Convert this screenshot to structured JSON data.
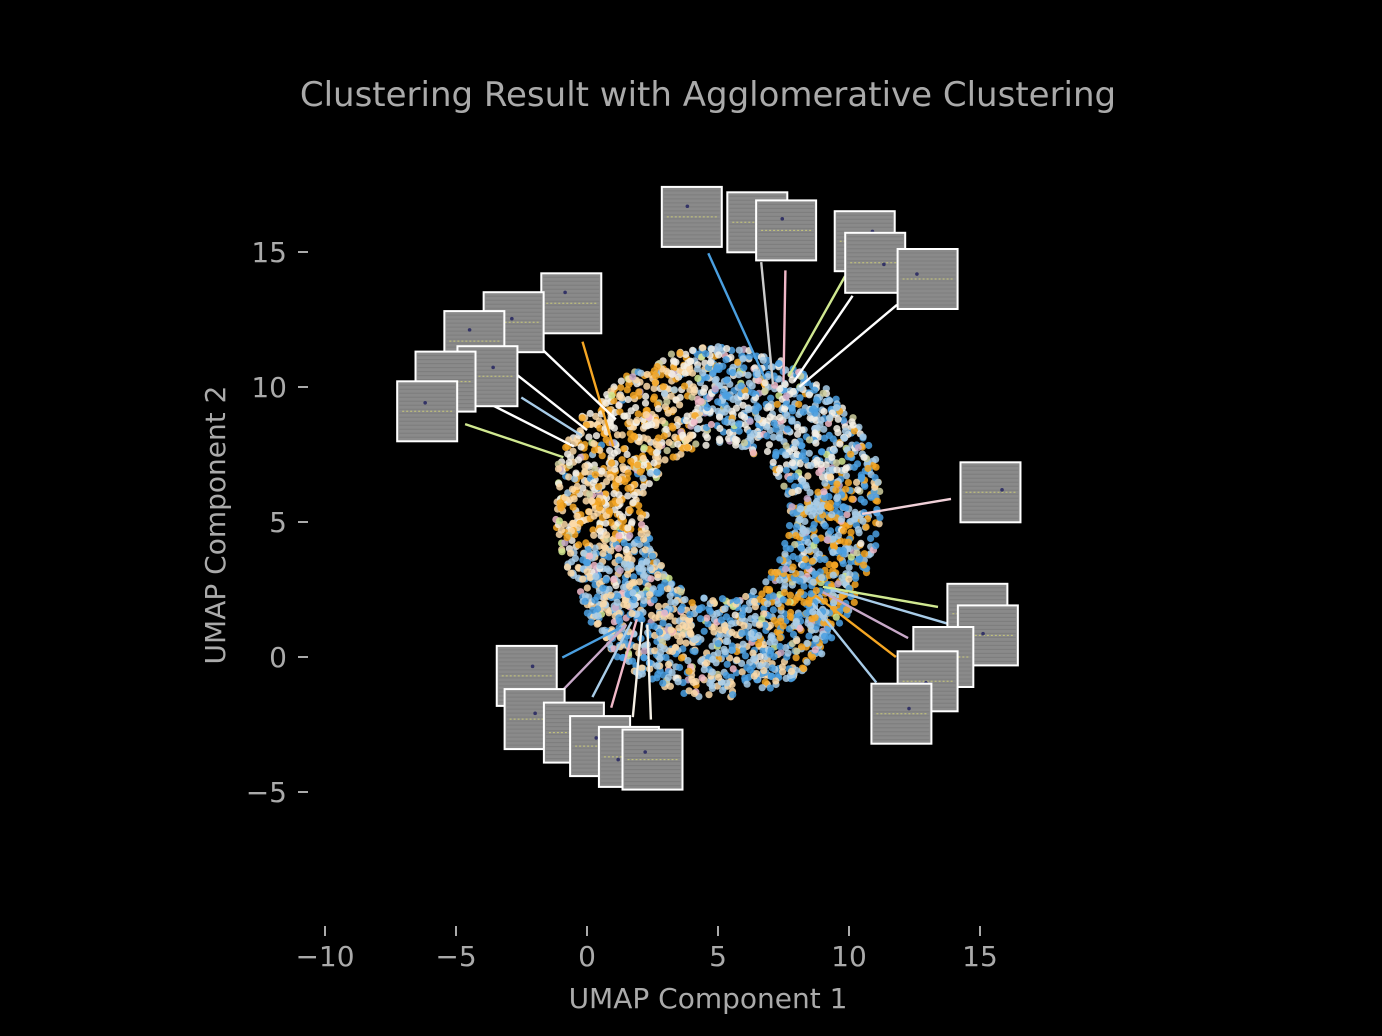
{
  "chart_data": {
    "type": "scatter",
    "title": "Clustering Result with Agglomerative Clustering",
    "xlabel": "UMAP Component 1",
    "ylabel": "UMAP Component 2",
    "xlim": [
      -10.5,
      20.0
    ],
    "ylim": [
      -9.5,
      18.5
    ],
    "x_ticks": [
      -10,
      -5,
      0,
      5,
      10,
      15
    ],
    "x_tick_labels": [
      "−10",
      "−5",
      "0",
      "5",
      "10",
      "15"
    ],
    "y_ticks": [
      -5,
      0,
      5,
      10,
      15
    ],
    "y_tick_labels": [
      "−5",
      "0",
      "5",
      "10",
      "15"
    ],
    "grid": false,
    "background": "#000000",
    "text_color": "#aaaaaa",
    "cluster_colors": [
      "#4a9fe0",
      "#f5a623",
      "#f5f0e6",
      "#a8cce8",
      "#fcd9a8",
      "#cfcf9f",
      "#c8a8c8",
      "#f0b8c8",
      "#d0e890"
    ],
    "point_cloud": {
      "shape": "ring",
      "center": [
        5.0,
        5.0
      ],
      "inner_radius": 2.7,
      "outer_radius": 6.2,
      "point_count": 2600
    },
    "regions": [
      {
        "angle_range": [
          100,
          190
        ],
        "dominant": [
          "#f5f0e6",
          "#fcd9a8",
          "#f5a623"
        ]
      },
      {
        "angle_range": [
          20,
          100
        ],
        "dominant": [
          "#4a9fe0",
          "#a8cce8",
          "#f5f0e6"
        ]
      },
      {
        "angle_range": [
          -60,
          20
        ],
        "dominant": [
          "#f5a623",
          "#4a9fe0",
          "#a8cce8"
        ]
      },
      {
        "angle_range": [
          190,
          300
        ],
        "dominant": [
          "#a8cce8",
          "#4a9fe0",
          "#fcd9a8"
        ]
      }
    ],
    "thumbnails": [
      {
        "box": [
          4.0,
          16.3
        ],
        "point": [
          6.8,
          10.3
        ],
        "line_color": "#4a9fe0"
      },
      {
        "box": [
          6.5,
          16.1
        ],
        "point": [
          7.1,
          10.1
        ],
        "line_color": "#cccccc"
      },
      {
        "box": [
          7.6,
          15.8
        ],
        "point": [
          7.5,
          10.2
        ],
        "line_color": "#f0b8c8"
      },
      {
        "box": [
          10.6,
          15.4
        ],
        "point": [
          7.7,
          10.4
        ],
        "line_color": "#d0e890"
      },
      {
        "box": [
          11.0,
          14.6
        ],
        "point": [
          7.9,
          10.2
        ],
        "line_color": "#ffffff"
      },
      {
        "box": [
          13.0,
          14.0
        ],
        "point": [
          8.1,
          10.0
        ],
        "line_color": "#ffffff"
      },
      {
        "box": [
          -0.6,
          13.1
        ],
        "point": [
          1.0,
          7.8
        ],
        "line_color": "#f5a623"
      },
      {
        "box": [
          -2.8,
          12.4
        ],
        "point": [
          1.1,
          8.8
        ],
        "line_color": "#ffffff"
      },
      {
        "box": [
          -4.3,
          11.7
        ],
        "point": [
          0.0,
          8.4
        ],
        "line_color": "#ffffff"
      },
      {
        "box": [
          -3.8,
          10.4
        ],
        "point": [
          -0.2,
          8.2
        ],
        "line_color": "#a8cce8"
      },
      {
        "box": [
          -5.4,
          10.2
        ],
        "point": [
          -0.5,
          7.8
        ],
        "line_color": "#ffffff"
      },
      {
        "box": [
          -6.1,
          9.1
        ],
        "point": [
          -0.9,
          7.4
        ],
        "line_color": "#d0e890"
      },
      {
        "box": [
          15.4,
          6.1
        ],
        "point": [
          10.5,
          5.3
        ],
        "line_color": "#f0d0d8"
      },
      {
        "box": [
          14.9,
          1.6
        ],
        "point": [
          9.0,
          2.6
        ],
        "line_color": "#d0e890"
      },
      {
        "box": [
          15.3,
          0.8
        ],
        "point": [
          9.3,
          2.5
        ],
        "line_color": "#a8cce8"
      },
      {
        "box": [
          13.6,
          0.0
        ],
        "point": [
          9.0,
          2.4
        ],
        "line_color": "#c8a8c8"
      },
      {
        "box": [
          13.0,
          -0.9
        ],
        "point": [
          8.7,
          2.3
        ],
        "line_color": "#f5a623"
      },
      {
        "box": [
          12.0,
          -2.1
        ],
        "point": [
          8.6,
          2.0
        ],
        "line_color": "#a8cce8"
      },
      {
        "box": [
          -2.3,
          -0.7
        ],
        "point": [
          1.3,
          1.1
        ],
        "line_color": "#4a9fe0"
      },
      {
        "box": [
          -2.0,
          -2.3
        ],
        "point": [
          1.5,
          1.2
        ],
        "line_color": "#c8a8c8"
      },
      {
        "box": [
          -0.5,
          -2.8
        ],
        "point": [
          1.7,
          1.3
        ],
        "line_color": "#a8cce8"
      },
      {
        "box": [
          0.5,
          -3.3
        ],
        "point": [
          1.9,
          1.4
        ],
        "line_color": "#f0b8c8"
      },
      {
        "box": [
          1.6,
          -3.7
        ],
        "point": [
          2.1,
          1.3
        ],
        "line_color": "#f5f0e6"
      },
      {
        "box": [
          2.5,
          -3.8
        ],
        "point": [
          2.3,
          1.2
        ],
        "line_color": "#f5f0e6"
      }
    ]
  }
}
